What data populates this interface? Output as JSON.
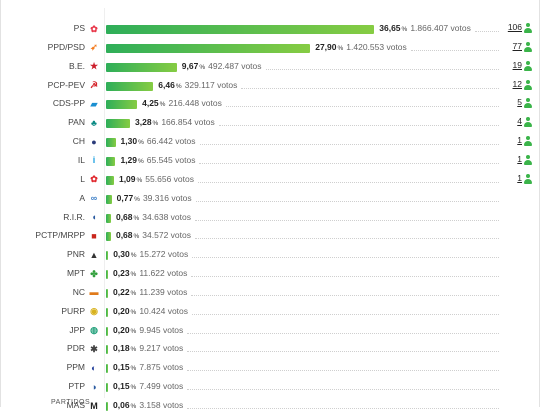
{
  "chart_data": {
    "type": "bar",
    "orientation": "horizontal",
    "unit_label": "votos",
    "xlim": [
      0,
      40
    ],
    "rows": [
      {
        "party": "PS",
        "percent": 36.65,
        "percent_text": "36,65",
        "votes_text": "1.866.407",
        "seats": "106",
        "logo": "rose-fist-icon",
        "color": "#e8374a"
      },
      {
        "party": "PPD/PSD",
        "percent": 27.9,
        "percent_text": "27,90",
        "votes_text": "1.420.553",
        "seats": "77",
        "logo": "psd-arrows-icon",
        "color": "#f47c20"
      },
      {
        "party": "B.E.",
        "percent": 9.67,
        "percent_text": "9,67",
        "votes_text": "492.487",
        "seats": "19",
        "logo": "star-icon",
        "color": "#cc1e2b"
      },
      {
        "party": "PCP-PEV",
        "percent": 6.46,
        "percent_text": "6,46",
        "votes_text": "329.117",
        "seats": "12",
        "logo": "hammer-sickle-icon",
        "color": "#d41f26"
      },
      {
        "party": "CDS-PP",
        "percent": 4.25,
        "percent_text": "4,25",
        "votes_text": "216.448",
        "seats": "5",
        "logo": "cds-square-icon",
        "color": "#1a8fd1"
      },
      {
        "party": "PAN",
        "percent": 3.28,
        "percent_text": "3,28",
        "votes_text": "166.854",
        "seats": "4",
        "logo": "pan-tree-icon",
        "color": "#0b8a84"
      },
      {
        "party": "CH",
        "percent": 1.3,
        "percent_text": "1,30",
        "votes_text": "66.442",
        "seats": "1",
        "logo": "chega-icon",
        "color": "#2b3b7a"
      },
      {
        "party": "IL",
        "percent": 1.29,
        "percent_text": "1,29",
        "votes_text": "65.545",
        "seats": "1",
        "logo": "il-square-icon",
        "color": "#1aa0e0"
      },
      {
        "party": "L",
        "percent": 1.09,
        "percent_text": "1,09",
        "votes_text": "55.656",
        "seats": "1",
        "logo": "poppy-icon",
        "color": "#e0282e"
      },
      {
        "party": "A",
        "percent": 0.77,
        "percent_text": "0,77",
        "votes_text": "39.316",
        "seats": "",
        "logo": "aliança-icon",
        "color": "#3d7fc7"
      },
      {
        "party": "R.I.R.",
        "percent": 0.68,
        "percent_text": "0,68",
        "votes_text": "34.638",
        "seats": "",
        "logo": "rir-icon",
        "color": "#2a5aa0"
      },
      {
        "party": "PCTP/MRPP",
        "percent": 0.68,
        "percent_text": "0,68",
        "votes_text": "34.572",
        "seats": "",
        "logo": "mrpp-icon",
        "color": "#c9261c"
      },
      {
        "party": "PNR",
        "percent": 0.3,
        "percent_text": "0,30",
        "votes_text": "15.272",
        "seats": "",
        "logo": "pnr-flame-icon",
        "color": "#333333"
      },
      {
        "party": "MPT",
        "percent": 0.23,
        "percent_text": "0,23",
        "votes_text": "11.622",
        "seats": "",
        "logo": "mpt-clover-icon",
        "color": "#2f9e3a"
      },
      {
        "party": "NC",
        "percent": 0.22,
        "percent_text": "0,22",
        "votes_text": "11.239",
        "seats": "",
        "logo": "nc-icon",
        "color": "#e07a1a"
      },
      {
        "party": "PURP",
        "percent": 0.2,
        "percent_text": "0,20",
        "votes_text": "10.424",
        "seats": "",
        "logo": "purp-icon",
        "color": "#d8b21e"
      },
      {
        "party": "JPP",
        "percent": 0.2,
        "percent_text": "0,20",
        "votes_text": "9.945",
        "seats": "",
        "logo": "jpp-globe-icon",
        "color": "#22a07a"
      },
      {
        "party": "PDR",
        "percent": 0.18,
        "percent_text": "0,18",
        "votes_text": "9.217",
        "seats": "",
        "logo": "pdr-icon",
        "color": "#444444"
      },
      {
        "party": "PPM",
        "percent": 0.15,
        "percent_text": "0,15",
        "votes_text": "7.875",
        "seats": "",
        "logo": "ppm-crown-icon",
        "color": "#23409a"
      },
      {
        "party": "PTP",
        "percent": 0.15,
        "percent_text": "0,15",
        "votes_text": "7.499",
        "seats": "",
        "logo": "ptp-icon",
        "color": "#2a5aa0"
      },
      {
        "party": "MAS",
        "percent": 0.06,
        "percent_text": "0,06",
        "votes_text": "3.158",
        "seats": "",
        "logo": "mas-icon",
        "color": "#222222"
      }
    ]
  },
  "footer": {
    "partial_label": "PARTIDOS"
  }
}
